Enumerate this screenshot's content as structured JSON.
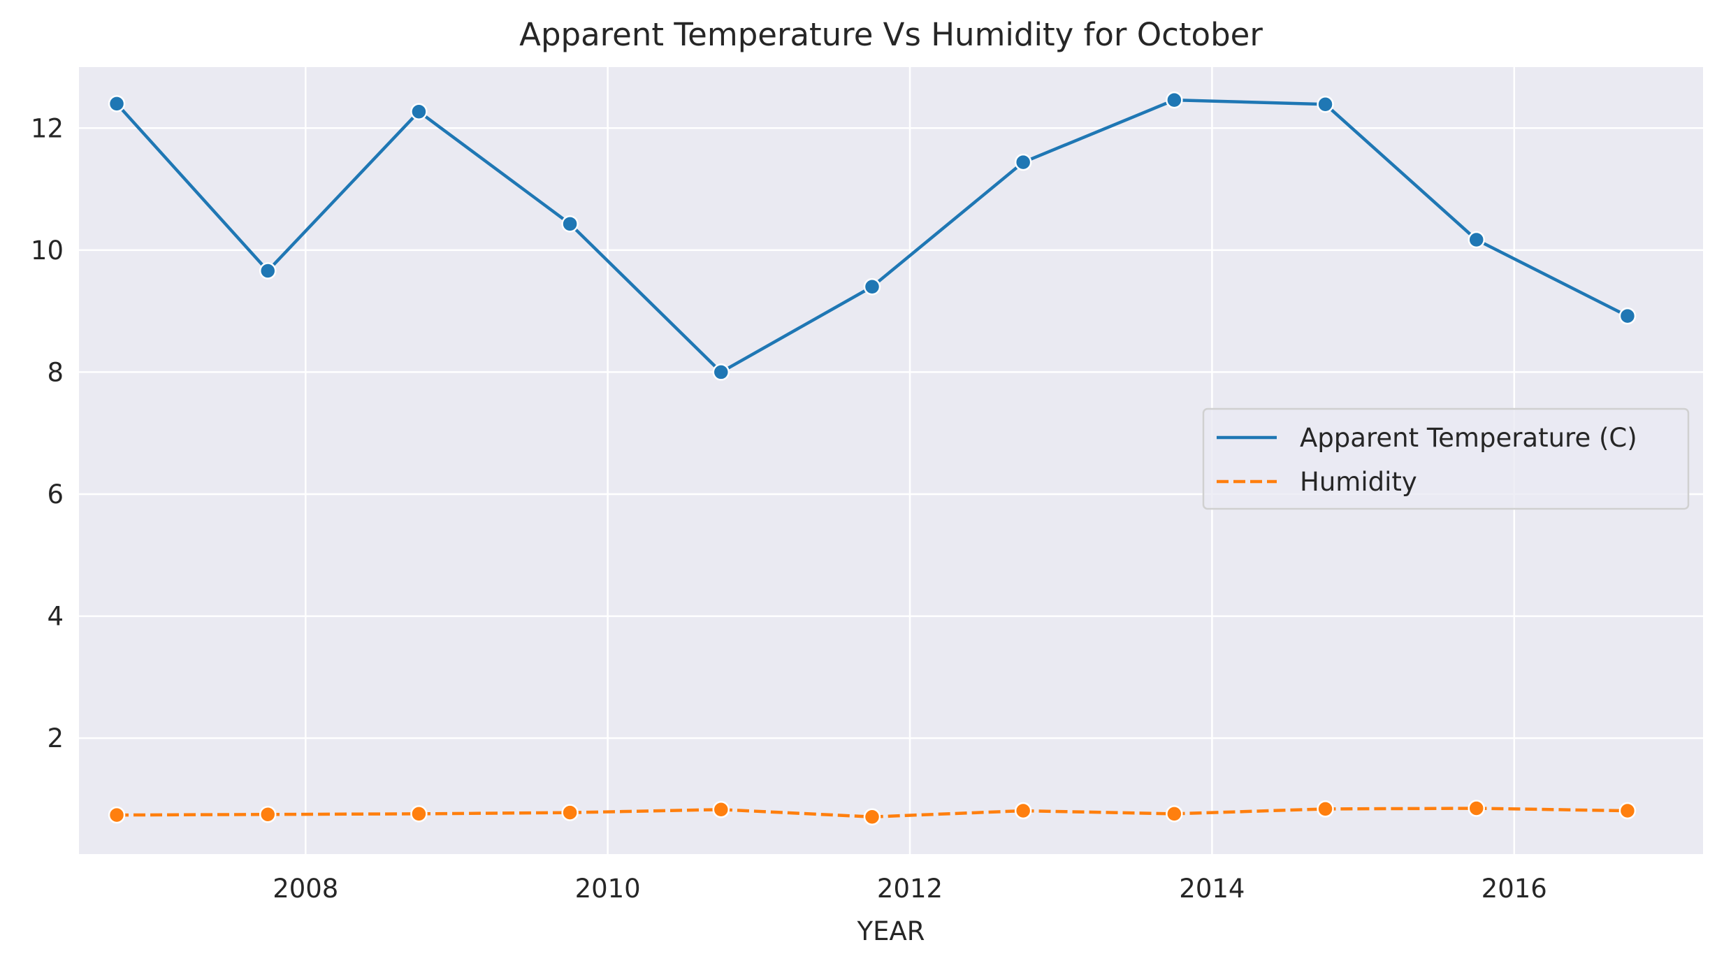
{
  "chart_data": {
    "type": "line",
    "title": "Apparent Temperature Vs Humidity for October",
    "xlabel": "YEAR",
    "ylabel": "",
    "x": [
      "2006-10",
      "2007-10",
      "2008-10",
      "2009-10",
      "2010-10",
      "2011-10",
      "2012-10",
      "2013-10",
      "2014-10",
      "2015-10",
      "2016-10"
    ],
    "xlim": [
      2006.5,
      2017.25
    ],
    "ylim": [
      0.1,
      13.0
    ],
    "xticks": [
      2008,
      2010,
      2012,
      2014,
      2016
    ],
    "xtick_labels": [
      "2008",
      "2010",
      "2012",
      "2014",
      "2016"
    ],
    "yticks": [
      2,
      4,
      6,
      8,
      10,
      12
    ],
    "ytick_labels": [
      "2",
      "4",
      "6",
      "8",
      "10",
      "12"
    ],
    "grid": true,
    "legend_position": "center-right",
    "series": [
      {
        "name": "Apparent Temperature (C)",
        "color": "#1f77b4",
        "linestyle": "solid",
        "marker": "circle",
        "values": [
          12.4,
          9.66,
          12.27,
          10.43,
          8.0,
          9.4,
          11.44,
          12.46,
          12.39,
          10.17,
          8.92
        ]
      },
      {
        "name": "Humidity",
        "color": "#ff7f0e",
        "linestyle": "dashed",
        "marker": "circle",
        "values": [
          0.74,
          0.75,
          0.76,
          0.78,
          0.83,
          0.71,
          0.81,
          0.76,
          0.84,
          0.85,
          0.81
        ]
      }
    ],
    "colors": {
      "plot_background": "#eaeaf2",
      "grid": "#ffffff",
      "text": "#262626"
    }
  }
}
